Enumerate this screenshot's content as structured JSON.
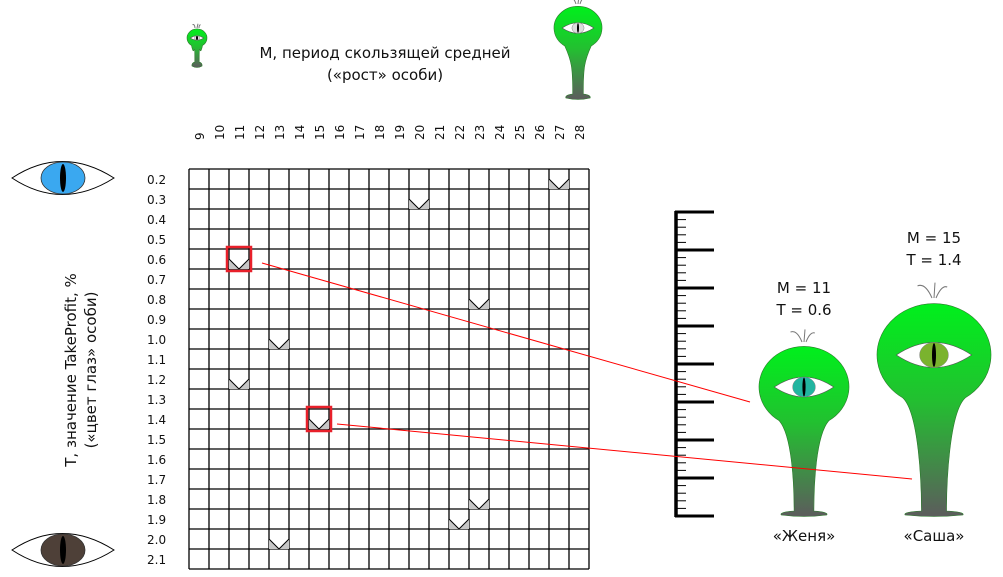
{
  "header": {
    "title_line1": "M, период скользящей средней",
    "title_line2": "(«рост» особи)"
  },
  "y_axis": {
    "title_line1": "T, значение TakeProfit, %",
    "title_line2": "(«цвет глаз» особи)"
  },
  "columns": [
    "9",
    "10",
    "11",
    "12",
    "13",
    "14",
    "15",
    "16",
    "17",
    "18",
    "19",
    "20",
    "21",
    "22",
    "23",
    "24",
    "25",
    "26",
    "27",
    "28"
  ],
  "rows": [
    "0.2",
    "0.3",
    "0.4",
    "0.5",
    "0.6",
    "0.7",
    "0.8",
    "0.9",
    "1.0",
    "1.1",
    "1.2",
    "1.3",
    "1.4",
    "1.5",
    "1.6",
    "1.7",
    "1.8",
    "1.9",
    "2.0",
    "2.1"
  ],
  "marks": [
    {
      "m": "27",
      "t": "0.2"
    },
    {
      "m": "20",
      "t": "0.3"
    },
    {
      "m": "11",
      "t": "0.6",
      "highlight": true
    },
    {
      "m": "23",
      "t": "0.8"
    },
    {
      "m": "13",
      "t": "1.0"
    },
    {
      "m": "11",
      "t": "1.2"
    },
    {
      "m": "15",
      "t": "1.4",
      "highlight": true
    },
    {
      "m": "23",
      "t": "1.8"
    },
    {
      "m": "22",
      "t": "1.9"
    },
    {
      "m": "13",
      "t": "2.0"
    }
  ],
  "eye_colors": {
    "low_t": "#3aa8f0",
    "high_t": "#4e4038"
  },
  "creatures": [
    {
      "name": "«Женя»",
      "m_label": "M = 11",
      "t_label": "T = 0.6",
      "iris": "#22b5a0"
    },
    {
      "name": "«Саша»",
      "m_label": "M = 15",
      "t_label": "T = 1.4",
      "iris": "#7ab32e"
    }
  ],
  "colors": {
    "highlight": "#e8202a",
    "connector": "#ff0000",
    "body_top": "#00ee1a",
    "body_bottom": "#5c5c5c"
  }
}
